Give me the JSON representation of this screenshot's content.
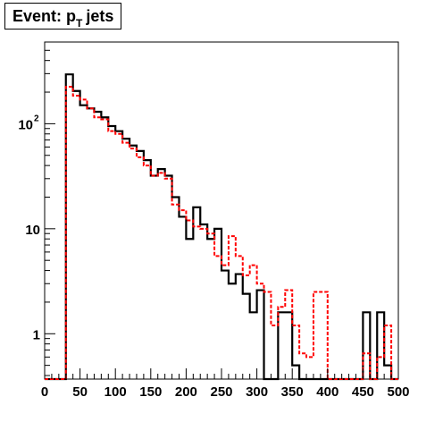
{
  "chart_data": {
    "type": "line",
    "title": {
      "main": "Event: p",
      "subscript": "T",
      "suffix": "jets"
    },
    "xlabel": "",
    "ylabel": "",
    "xlim": [
      0,
      500
    ],
    "ylim": [
      0.37,
      600
    ],
    "ylog": true,
    "grid": false,
    "bin_width": 10,
    "bin_edges_start": 0,
    "x_tick_labels": [
      "0",
      "50",
      "100",
      "150",
      "200",
      "250",
      "300",
      "350",
      "400",
      "450",
      "500"
    ],
    "y_tick_labels": [
      {
        "value": 1,
        "text": "1"
      },
      {
        "value": 10,
        "text": "10"
      },
      {
        "value": 100,
        "base": "10",
        "exponent": "2"
      }
    ],
    "series": [
      {
        "style": "solid",
        "color": "#000000",
        "values": [
          0,
          0,
          0,
          295,
          205,
          150,
          140,
          130,
          115,
          95,
          85,
          72,
          62,
          55,
          45,
          32,
          37,
          32,
          20,
          13,
          8,
          16,
          11,
          8,
          10,
          4,
          3,
          3.7,
          2.4,
          1.6,
          2.6,
          0,
          0,
          1.6,
          1.6,
          0.5,
          0,
          0,
          0,
          0,
          0,
          0,
          0,
          0,
          0,
          1.6,
          0,
          1.6,
          0.5,
          0
        ]
      },
      {
        "style": "dashed",
        "color": "#ff0000",
        "values": [
          0,
          0,
          0,
          225,
          185,
          170,
          140,
          115,
          110,
          85,
          80,
          66,
          58,
          48,
          40,
          32,
          34,
          30,
          17,
          15,
          12,
          10.5,
          10,
          9,
          5.5,
          4.5,
          8.5,
          5.5,
          3.6,
          4.5,
          3,
          2.5,
          1.2,
          1.8,
          2.6,
          1.2,
          0.65,
          0.6,
          2.5,
          2.5,
          0,
          0,
          0,
          0,
          0,
          0.65,
          0,
          0.6,
          1.2,
          0
        ]
      }
    ]
  }
}
